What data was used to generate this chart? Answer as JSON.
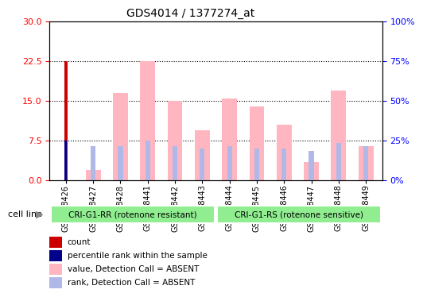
{
  "title": "GDS4014 / 1377274_at",
  "samples": [
    "GSM498426",
    "GSM498427",
    "GSM498428",
    "GSM498441",
    "GSM498442",
    "GSM498443",
    "GSM498444",
    "GSM498445",
    "GSM498446",
    "GSM498447",
    "GSM498448",
    "GSM498449"
  ],
  "value_absent": [
    0,
    2.0,
    16.5,
    22.5,
    15.0,
    9.5,
    15.5,
    14.0,
    10.5,
    3.5,
    17.0,
    6.5
  ],
  "rank_absent": [
    0,
    6.5,
    6.5,
    7.5,
    6.5,
    6.0,
    6.5,
    6.0,
    6.0,
    5.5,
    7.0,
    6.5
  ],
  "count_val": [
    22.5,
    0,
    0,
    0,
    0,
    0,
    0,
    0,
    0,
    0,
    0,
    0
  ],
  "percentile_rank": [
    7.5,
    0,
    0,
    0,
    0,
    0,
    0,
    0,
    0,
    0,
    0,
    0
  ],
  "group1_label": "CRI-G1-RR (rotenone resistant)",
  "group2_label": "CRI-G1-RS (rotenone sensitive)",
  "group1_count": 6,
  "group2_count": 6,
  "cell_line_label": "cell line",
  "ylim_left": [
    0,
    30
  ],
  "ylim_right": [
    0,
    100
  ],
  "yticks_left": [
    0,
    7.5,
    15,
    22.5,
    30
  ],
  "yticks_right": [
    0,
    25,
    50,
    75,
    100
  ],
  "color_value_absent": "#FFB6C1",
  "color_rank_absent": "#B0B8E8",
  "color_count": "#CC0000",
  "color_percentile": "#00008B",
  "color_group_bg": "#90EE90",
  "plot_bg": "#FFFFFF",
  "sample_area_bg": "#D8D8D8"
}
